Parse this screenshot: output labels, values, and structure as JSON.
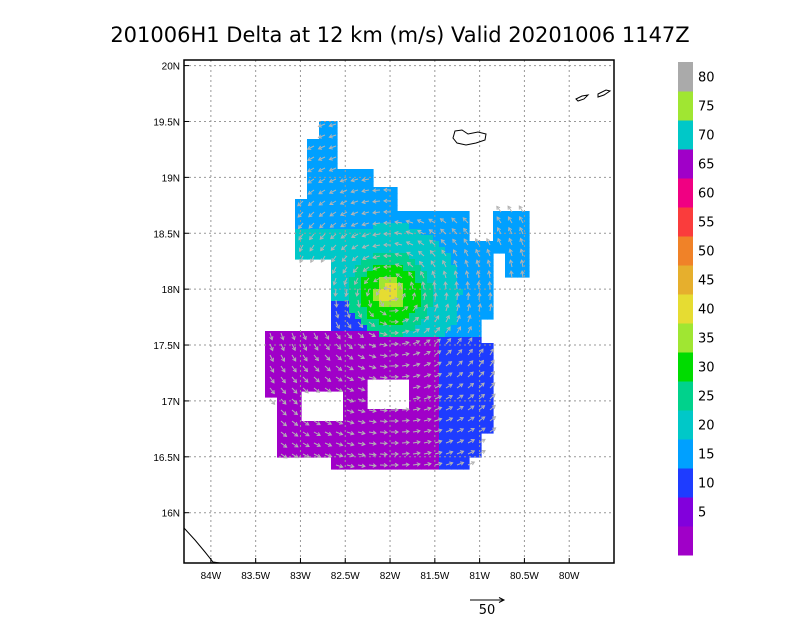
{
  "chart_data": {
    "type": "heatmap",
    "title": "201006H1 Delta at 12 km (m/s) Valid 20201006  1147Z",
    "x_axis": {
      "range_deg": [
        -84.3,
        -79.5
      ],
      "ticks": [
        {
          "value": -84.0,
          "label": "84W"
        },
        {
          "value": -83.5,
          "label": "83.5W"
        },
        {
          "value": -83.0,
          "label": "83W"
        },
        {
          "value": -82.5,
          "label": "82.5W"
        },
        {
          "value": -82.0,
          "label": "82W"
        },
        {
          "value": -81.5,
          "label": "81.5W"
        },
        {
          "value": -81.0,
          "label": "81W"
        },
        {
          "value": -80.5,
          "label": "80.5W"
        },
        {
          "value": -80.0,
          "label": "80W"
        }
      ]
    },
    "y_axis": {
      "range_deg": [
        15.55,
        20.05
      ],
      "ticks": [
        {
          "value": 16.0,
          "label": "16N"
        },
        {
          "value": 16.5,
          "label": "16.5N"
        },
        {
          "value": 17.0,
          "label": "17N"
        },
        {
          "value": 17.5,
          "label": "17.5N"
        },
        {
          "value": 18.0,
          "label": "18N"
        },
        {
          "value": 18.5,
          "label": "18.5N"
        },
        {
          "value": 19.0,
          "label": "19N"
        },
        {
          "value": 19.5,
          "label": "19.5N"
        },
        {
          "value": 20.0,
          "label": "20N"
        }
      ]
    },
    "grid": true,
    "colorbar": {
      "placement": "right",
      "colors": [
        "#a000c8",
        "#8200dc",
        "#1e3cff",
        "#00a0ff",
        "#00c8c8",
        "#00d28c",
        "#00dc00",
        "#a0e632",
        "#e6dc32",
        "#e6af2d",
        "#f08228",
        "#fa3c3c",
        "#f00082",
        "#a000c8",
        "#00c8c8",
        "#a0e632",
        "#aaaaaa"
      ],
      "labels": [
        "5",
        "10",
        "15",
        "20",
        "25",
        "30",
        "35",
        "40",
        "45",
        "50",
        "55",
        "60",
        "65",
        "70",
        "75",
        "80"
      ]
    },
    "storm_center": {
      "lon": -82.0,
      "lat": 17.95
    },
    "reference_vector": {
      "label": "50"
    }
  }
}
